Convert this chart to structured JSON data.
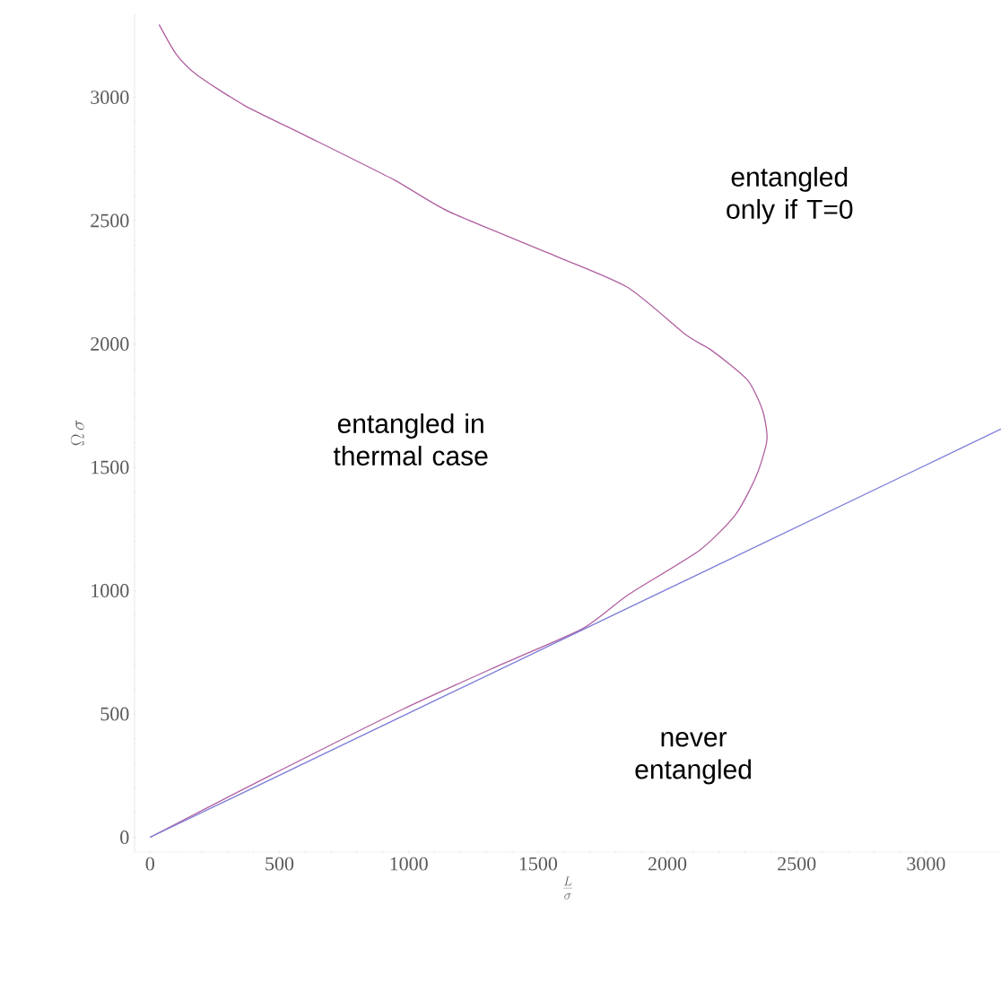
{
  "chart_data": {
    "type": "line",
    "xlabel": "\\frac{L}{\\sigma}",
    "ylabel": "\\Omega\\,\\sigma",
    "xlim": [
      -60,
      3290
    ],
    "ylim": [
      -60,
      3340
    ],
    "xticks": [
      0,
      500,
      1000,
      1500,
      2000,
      2500,
      3000
    ],
    "yticks": [
      0,
      500,
      1000,
      1500,
      2000,
      2500,
      3000
    ],
    "line_style": "solid",
    "series": [
      {
        "color": "#b05fa0",
        "x": [
          0,
          458,
          979,
          1361,
          1674,
          1847,
          2125,
          2264,
          2344,
          2385,
          2368,
          2309,
          2170,
          2073,
          1847,
          1569,
          1153,
          944,
          597,
          365,
          181,
          101,
          35
        ],
        "values": [
          0,
          247,
          520,
          702,
          847,
          982,
          1164,
          1309,
          1465,
          1611,
          1731,
          1855,
          1975,
          2036,
          2229,
          2356,
          2538,
          2665,
          2847,
          2967,
          3091,
          3175,
          3295
        ]
      },
      {
        "color": "#7a7ad8",
        "x": [
          0,
          3290
        ],
        "values": [
          0,
          1655
        ]
      }
    ],
    "annotations": [
      "entangled\nonly if T=0",
      "entangled in\nthermal case",
      "never\nentangled"
    ]
  }
}
